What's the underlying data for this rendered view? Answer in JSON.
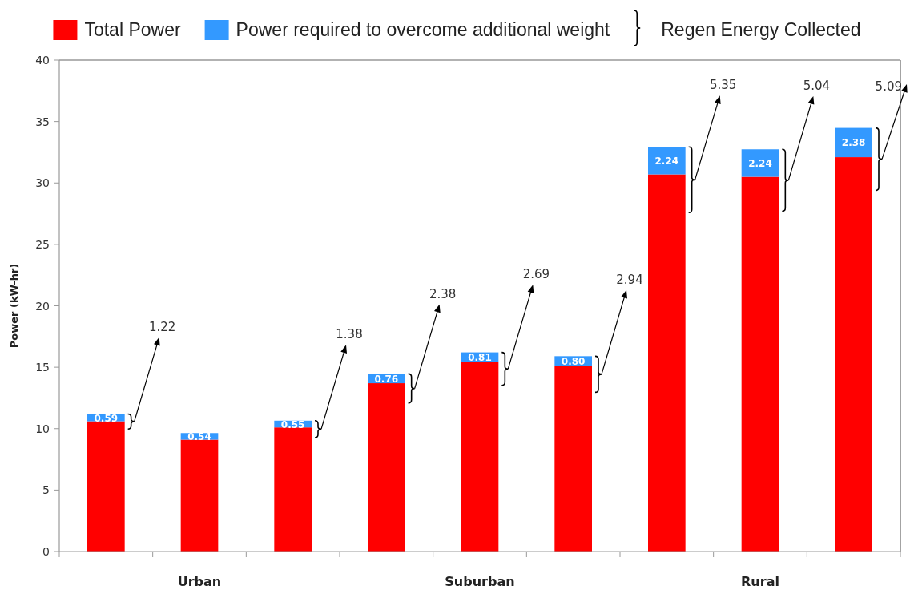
{
  "chart_data": {
    "type": "bar",
    "stacked": true,
    "legend": "top",
    "categories": [
      null,
      "Urban",
      null,
      null,
      "Suburban",
      null,
      null,
      "Rural",
      null
    ],
    "ylabel": "Power (kW-hr)",
    "ylim": [
      0,
      40
    ],
    "yticks": [
      0,
      5,
      10,
      15,
      20,
      25,
      30,
      35,
      40
    ],
    "series": [
      {
        "name": "Total Power",
        "color": "#ff0000",
        "values": [
          10.6,
          9.1,
          10.1,
          13.7,
          15.4,
          15.1,
          30.7,
          30.5,
          32.1
        ]
      },
      {
        "name": "Power required to overcome additional weight",
        "color": "#3399ff",
        "values": [
          0.59,
          0.54,
          0.55,
          0.76,
          0.81,
          0.8,
          2.24,
          2.24,
          2.38
        ],
        "value_labels": [
          "0.59",
          "0.54",
          "0.55",
          "0.76",
          "0.81",
          "0.80",
          "2.24",
          "2.24",
          "2.38"
        ]
      }
    ],
    "annotations": [
      "Regen Energy Collected",
      "1.22",
      "1.38",
      "2.38",
      "2.69",
      "2.94",
      "5.35",
      "5.04",
      "5.09"
    ]
  }
}
